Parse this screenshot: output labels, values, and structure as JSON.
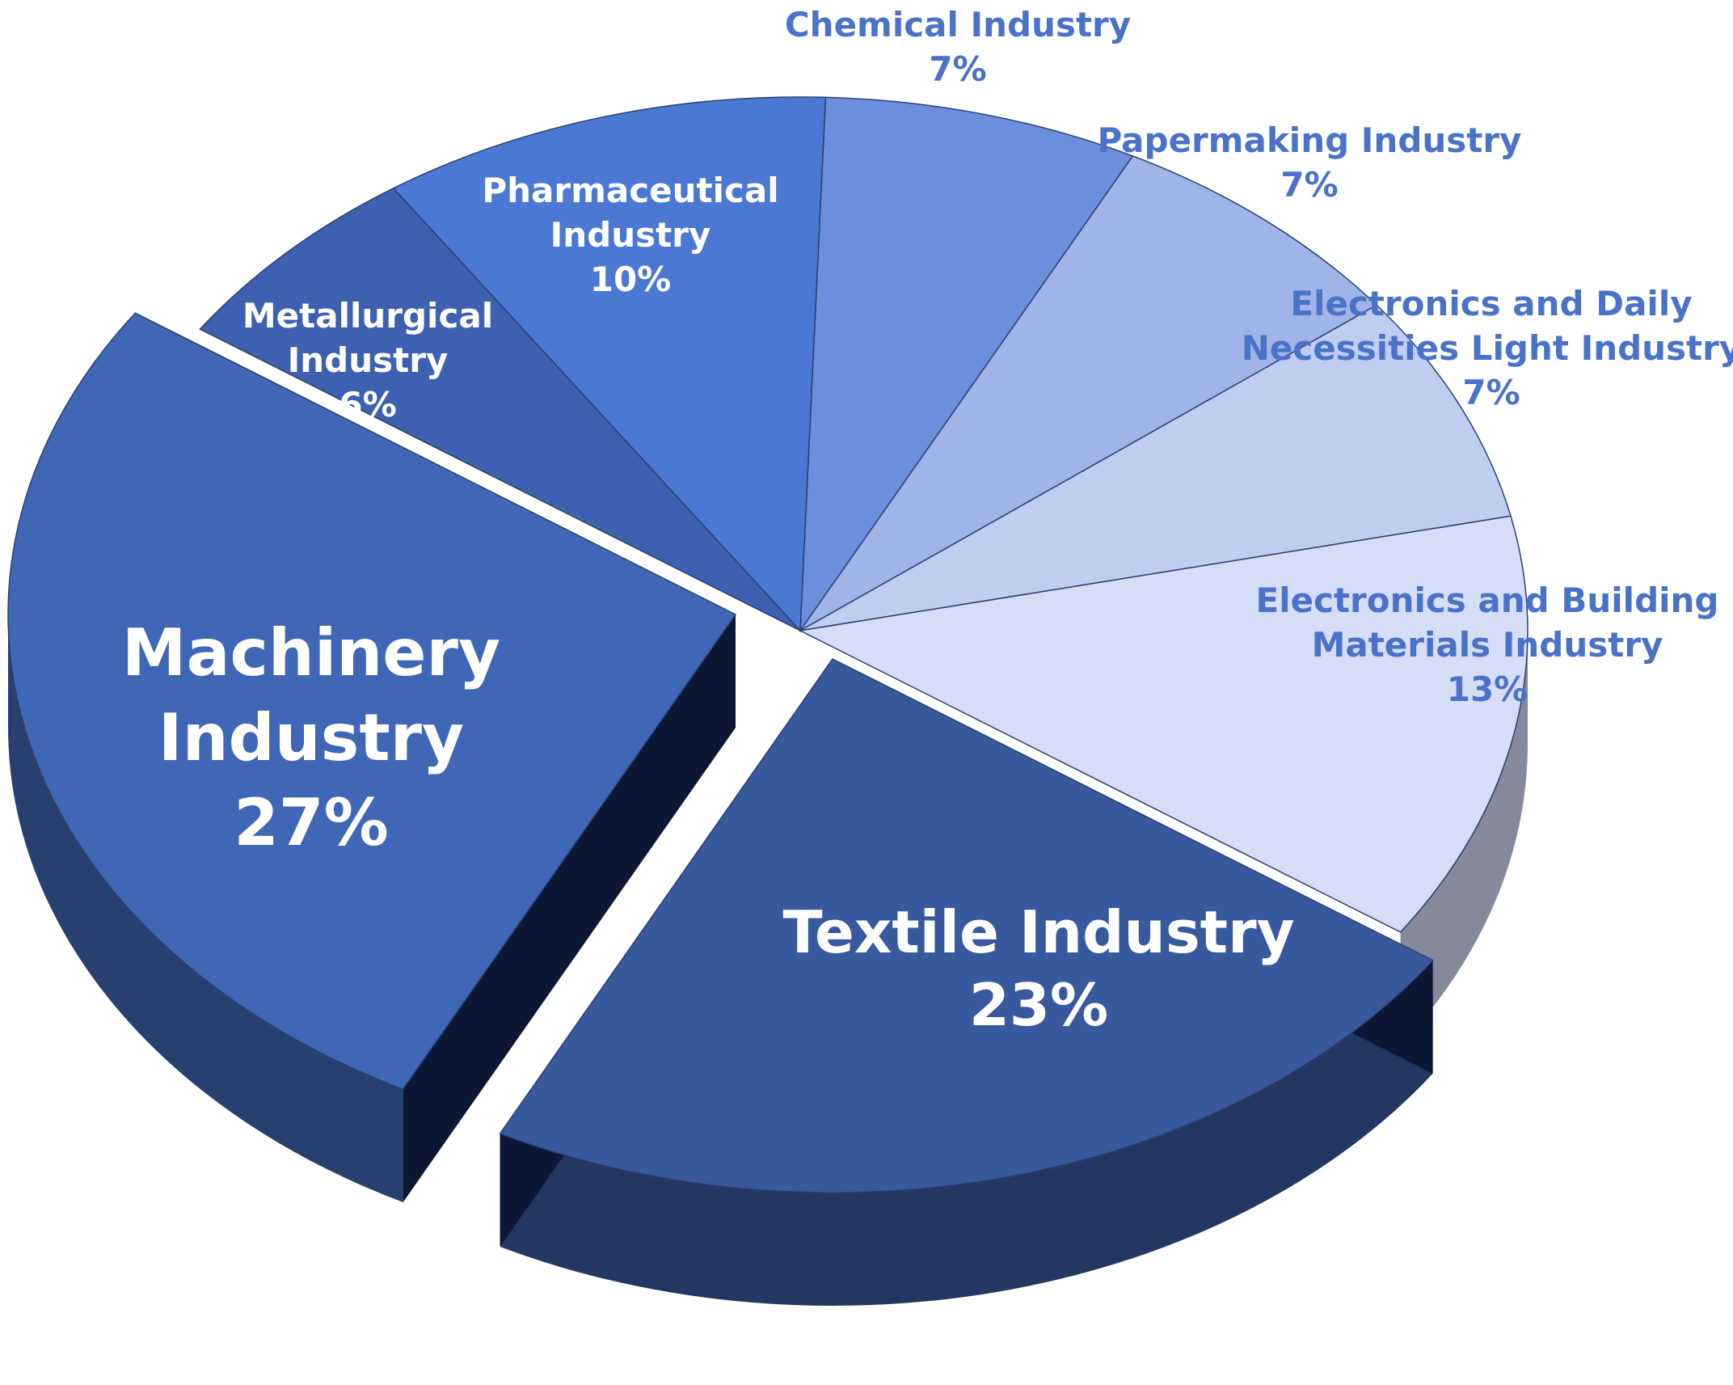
{
  "chart_data": {
    "type": "pie",
    "title": "",
    "style": "3d-exploded",
    "slices": [
      {
        "name": "Chemical Industry",
        "label_lines": [
          "Chemical Industry"
        ],
        "value": 7,
        "pct_label": "7%",
        "color": "#6b8fdd",
        "label_color": "#4a72c8",
        "label_inside": false
      },
      {
        "name": "Papermaking Industry",
        "label_lines": [
          "Papermaking Industry"
        ],
        "value": 7,
        "pct_label": "7%",
        "color": "#a0b4e8",
        "label_color": "#4a72c8",
        "label_inside": false
      },
      {
        "name": "Electronics and Daily Necessities Light Industry",
        "label_lines": [
          "Electronics and Daily",
          "Necessities Light Industry"
        ],
        "value": 7,
        "pct_label": "7%",
        "color": "#bfcdf0",
        "label_color": "#4a72c8",
        "label_inside": false
      },
      {
        "name": "Electronics and Building Materials Industry",
        "label_lines": [
          "Electronics and Building",
          "Materials Industry"
        ],
        "value": 13,
        "pct_label": "13%",
        "color": "#d6ddf6",
        "label_color": "#4a72c8",
        "label_inside": false
      },
      {
        "name": "Textile Industry",
        "label_lines": [
          "Textile Industry"
        ],
        "value": 23,
        "pct_label": "23%",
        "color": "#39599e",
        "label_color": "#ffffff",
        "label_inside": true
      },
      {
        "name": "Machinery Industry",
        "label_lines": [
          "Machinery",
          "Industry"
        ],
        "value": 27,
        "pct_label": "27%",
        "color": "#4067b5",
        "label_color": "#ffffff",
        "label_inside": true
      },
      {
        "name": "Metallurgical Industry",
        "label_lines": [
          "Metallurgical",
          "Industry"
        ],
        "value": 6,
        "pct_label": "6%",
        "color": "#3d61b0",
        "label_color": "#ffffff",
        "label_inside": true
      },
      {
        "name": "Pharmaceutical Industry",
        "label_lines": [
          "Pharmaceutical",
          "Industry"
        ],
        "value": 10,
        "pct_label": "10%",
        "color": "#4a78d3",
        "label_color": "#ffffff",
        "label_inside": true
      }
    ]
  }
}
